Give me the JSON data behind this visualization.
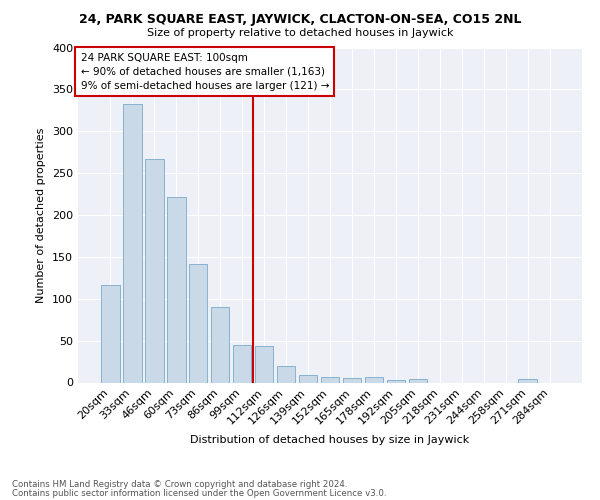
{
  "title1": "24, PARK SQUARE EAST, JAYWICK, CLACTON-ON-SEA, CO15 2NL",
  "title2": "Size of property relative to detached houses in Jaywick",
  "xlabel": "Distribution of detached houses by size in Jaywick",
  "ylabel": "Number of detached properties",
  "categories": [
    "20sqm",
    "33sqm",
    "46sqm",
    "60sqm",
    "73sqm",
    "86sqm",
    "99sqm",
    "112sqm",
    "126sqm",
    "139sqm",
    "152sqm",
    "165sqm",
    "178sqm",
    "192sqm",
    "205sqm",
    "218sqm",
    "231sqm",
    "244sqm",
    "258sqm",
    "271sqm",
    "284sqm"
  ],
  "values": [
    116,
    333,
    267,
    222,
    141,
    90,
    45,
    43,
    20,
    9,
    7,
    5,
    7,
    3,
    4,
    0,
    0,
    0,
    0,
    4,
    0
  ],
  "bar_color": "#c9d9e8",
  "bar_edge_color": "#7aaac8",
  "vline_index": 6,
  "vline_color": "#cc0000",
  "annotation_lines": [
    "24 PARK SQUARE EAST: 100sqm",
    "← 90% of detached houses are smaller (1,163)",
    "9% of semi-detached houses are larger (121) →"
  ],
  "annotation_box_color": "#cc0000",
  "footnote1": "Contains HM Land Registry data © Crown copyright and database right 2024.",
  "footnote2": "Contains public sector information licensed under the Open Government Licence v3.0.",
  "bg_color": "#edf1f7",
  "ylim": [
    0,
    400
  ],
  "yticks": [
    0,
    50,
    100,
    150,
    200,
    250,
    300,
    350,
    400
  ]
}
